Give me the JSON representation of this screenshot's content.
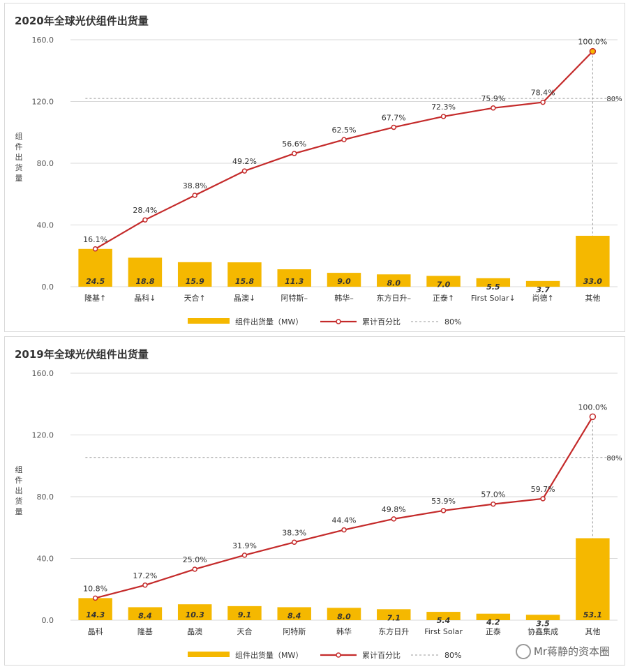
{
  "chart_data": [
    {
      "type": "bar",
      "title": "2020年全球光伏组件出货量",
      "ylabel": "组件出货量",
      "ylim": [
        0,
        160
      ],
      "yticks": [
        "0.0",
        "40.0",
        "80.0",
        "120.0",
        "160.0"
      ],
      "categories": [
        "隆基↑",
        "晶科↓",
        "天合↑",
        "晶澳↓",
        "阿特斯–",
        "韩华–",
        "东方日升–",
        "正泰↑",
        "First Solar↓",
        "尚德↑",
        "其他"
      ],
      "series": [
        {
          "name": "组件出货量（MW）",
          "type": "bar",
          "values": [
            24.5,
            18.8,
            15.9,
            15.8,
            11.3,
            9.0,
            8.0,
            7.0,
            5.5,
            3.7,
            33.0
          ],
          "labels": [
            "24.5",
            "18.8",
            "15.9",
            "15.8",
            "11.3",
            "9.0",
            "8.0",
            "7.0",
            "5.5",
            "3.7",
            "33.0"
          ]
        },
        {
          "name": "累计百分比",
          "type": "line",
          "values": [
            24.5,
            43.3,
            59.2,
            75.0,
            86.3,
            95.3,
            103.3,
            110.3,
            115.8,
            119.5,
            152.5
          ],
          "labels": [
            "16.1%",
            "28.4%",
            "38.8%",
            "49.2%",
            "56.6%",
            "62.5%",
            "67.7%",
            "72.3%",
            "75.9%",
            "78.4%",
            "100.0%"
          ]
        },
        {
          "name": "80%",
          "type": "reference",
          "value": 122,
          "label": "80%"
        }
      ],
      "grid": true,
      "legend": "bottom",
      "colors": {
        "bar": "#f5b800",
        "line": "#c42a2a",
        "last_marker": "#f5b800"
      }
    },
    {
      "type": "bar",
      "title": "2019年全球光伏组件出货量",
      "ylabel": "组件出货量",
      "ylim": [
        0,
        160
      ],
      "yticks": [
        "0.0",
        "40.0",
        "80.0",
        "120.0",
        "160.0"
      ],
      "categories": [
        "晶科",
        "隆基",
        "晶澳",
        "天合",
        "阿特斯",
        "韩华",
        "东方日升",
        "First Solar",
        "正泰",
        "协鑫集成",
        "其他"
      ],
      "series": [
        {
          "name": "组件出货量（MW）",
          "type": "bar",
          "values": [
            14.3,
            8.4,
            10.3,
            9.1,
            8.4,
            8.0,
            7.1,
            5.4,
            4.2,
            3.5,
            53.1
          ],
          "labels": [
            "14.3",
            "8.4",
            "10.3",
            "9.1",
            "8.4",
            "8.0",
            "7.1",
            "5.4",
            "4.2",
            "3.5",
            "53.1"
          ]
        },
        {
          "name": "累计百分比",
          "type": "line",
          "values": [
            14.3,
            22.7,
            33.0,
            42.1,
            50.5,
            58.5,
            65.6,
            71.0,
            75.2,
            78.7,
            131.8
          ],
          "labels": [
            "10.8%",
            "17.2%",
            "25.0%",
            "31.9%",
            "38.3%",
            "44.4%",
            "49.8%",
            "53.9%",
            "57.0%",
            "59.7%",
            "100.0%"
          ]
        },
        {
          "name": "80%",
          "type": "reference",
          "value": 105.4,
          "label": "80%"
        }
      ],
      "grid": true,
      "legend": "bottom",
      "colors": {
        "bar": "#f5b800",
        "line": "#c42a2a",
        "last_marker": "#ffffff"
      }
    }
  ],
  "watermark": {
    "text": "Mr蒋静的资本圈",
    "icon": "wechat-icon"
  }
}
